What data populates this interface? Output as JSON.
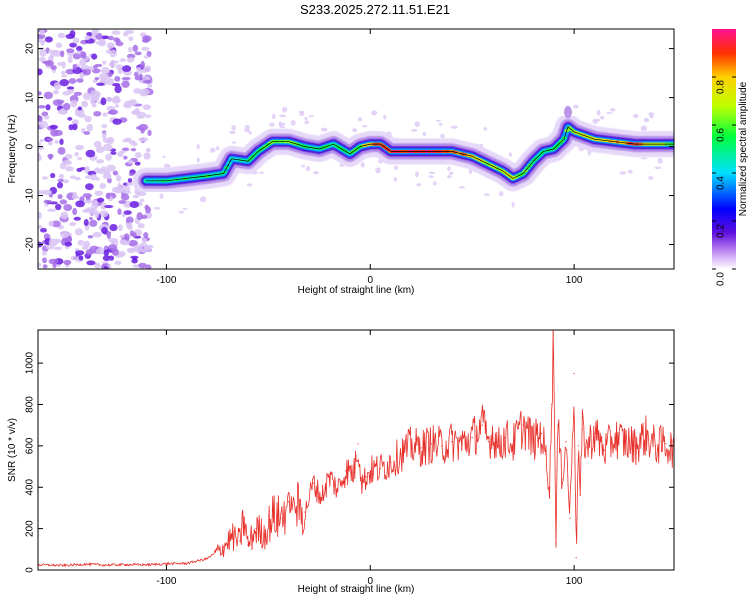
{
  "title": "S233.2025.272.11.51.E21",
  "chart_data": [
    {
      "type": "heatmap",
      "title": "S233.2025.272.11.51.E21",
      "xlabel": "Height of straight line (km)",
      "ylabel": "Frequency (Hz)",
      "xlim": [
        -163,
        149
      ],
      "ylim": [
        -25,
        24
      ],
      "xticks": [
        -100,
        0,
        100
      ],
      "xtick_labels": [
        "-100",
        "0",
        "100"
      ],
      "yticks": [
        -20,
        -10,
        0,
        10,
        20
      ],
      "ytick_labels": [
        "-20",
        "-10",
        "0",
        "10",
        "20"
      ],
      "ridge": {
        "x": [
          -110,
          -100,
          -90,
          -80,
          -72,
          -68,
          -60,
          -55,
          -48,
          -40,
          -32,
          -25,
          -18,
          -10,
          -5,
          0,
          5,
          10,
          20,
          30,
          40,
          45,
          50,
          55,
          60,
          65,
          70,
          75,
          80,
          85,
          90,
          95,
          97,
          100,
          110,
          120,
          130,
          140,
          149
        ],
        "y": [
          -7,
          -7,
          -6.5,
          -6,
          -5.5,
          -2.5,
          -3,
          -1,
          1,
          1,
          0,
          -0.5,
          0.5,
          -1.5,
          0,
          0.5,
          0.5,
          -1,
          -1,
          -1,
          -1,
          -1.5,
          -2,
          -3,
          -4,
          -5,
          -6.5,
          -5.5,
          -3,
          -1,
          -0.5,
          1.5,
          4,
          3,
          1.5,
          1,
          0.5,
          0.5,
          0.5
        ],
        "amplitude": [
          0.45,
          0.5,
          0.5,
          0.55,
          0.5,
          0.45,
          0.5,
          0.55,
          0.6,
          0.6,
          0.55,
          0.5,
          0.55,
          0.5,
          0.6,
          0.85,
          0.9,
          0.9,
          0.95,
          0.95,
          0.9,
          0.85,
          0.75,
          0.7,
          0.65,
          0.7,
          0.7,
          0.6,
          0.55,
          0.5,
          0.5,
          0.55,
          0.6,
          0.7,
          0.75,
          0.8,
          0.9,
          0.7,
          0.6
        ]
      },
      "noise_region_x": [
        -163,
        -108
      ],
      "colorbar": {
        "label": "Normalized spectral amplitude",
        "range": [
          0,
          1
        ],
        "ticks": [
          0.0,
          0.2,
          0.4,
          0.6,
          0.8
        ],
        "tick_labels": [
          "0.0",
          "0.2",
          "0.4",
          "0.6",
          "0.8"
        ]
      }
    },
    {
      "type": "line",
      "xlabel": "Height of straight line (km)",
      "ylabel": "SNR (10 * v/v)",
      "xlim": [
        -163,
        149
      ],
      "ylim": [
        0,
        1160
      ],
      "xticks": [
        -100,
        0,
        100
      ],
      "xtick_labels": [
        "-100",
        "0",
        "100"
      ],
      "yticks": [
        0,
        200,
        400,
        600,
        800,
        1000
      ],
      "ytick_labels": [
        "0",
        "200",
        "400",
        "600",
        "800",
        "1000"
      ],
      "series": [
        {
          "name": "SNR",
          "color": "#e8302a",
          "x": [
            -163,
            -150,
            -140,
            -130,
            -120,
            -110,
            -100,
            -90,
            -80,
            -72,
            -68,
            -64,
            -62,
            -60,
            -56,
            -52,
            -48,
            -44,
            -40,
            -36,
            -32,
            -28,
            -24,
            -20,
            -16,
            -12,
            -8,
            -6,
            -4,
            -2,
            0,
            5,
            10,
            15,
            20,
            25,
            30,
            35,
            40,
            45,
            50,
            55,
            58,
            60,
            63,
            66,
            70,
            75,
            80,
            84,
            86,
            88,
            89,
            90,
            91,
            92,
            94,
            96,
            98,
            100,
            101,
            102,
            103,
            104,
            106,
            110,
            115,
            120,
            125,
            130,
            135,
            140,
            145,
            149
          ],
          "y": [
            25,
            22,
            28,
            24,
            26,
            25,
            30,
            32,
            55,
            110,
            160,
            140,
            250,
            120,
            200,
            170,
            260,
            250,
            330,
            300,
            280,
            420,
            350,
            450,
            390,
            480,
            470,
            610,
            420,
            450,
            480,
            490,
            520,
            560,
            600,
            590,
            610,
            600,
            620,
            610,
            640,
            700,
            620,
            660,
            600,
            640,
            610,
            700,
            620,
            660,
            560,
            400,
            800,
            1160,
            130,
            700,
            440,
            620,
            250,
            950,
            60,
            600,
            360,
            680,
            590,
            660,
            580,
            640,
            620,
            600,
            650,
            600,
            610,
            580
          ]
        }
      ]
    }
  ]
}
